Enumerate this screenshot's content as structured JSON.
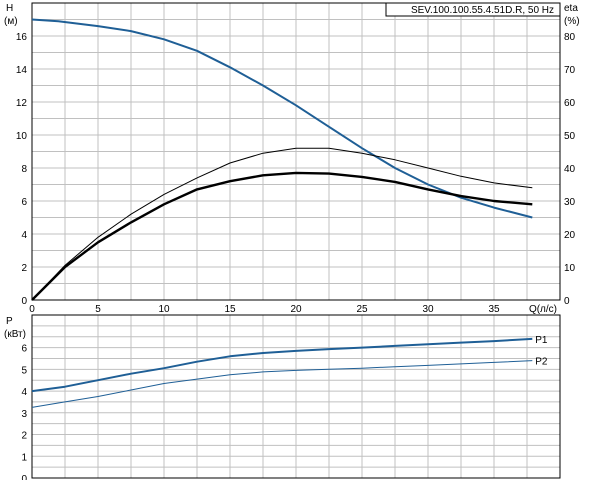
{
  "chart_data": [
    {
      "type": "line",
      "title": "SEV.100.100.55.4.51D.R, 50 Hz",
      "xlabel": "Q(л/с)",
      "y_left": {
        "name": "H",
        "unit": "(м)",
        "ylim": [
          0,
          18
        ],
        "ticks": [
          0,
          2,
          4,
          6,
          8,
          10,
          12,
          14,
          16
        ]
      },
      "y_right": {
        "name": "eta",
        "unit": "(%)",
        "ylim": [
          0,
          90
        ],
        "ticks": [
          0,
          10,
          20,
          30,
          40,
          50,
          60,
          70,
          80
        ]
      },
      "xlim": [
        0,
        40
      ],
      "xticks": [
        0,
        5,
        10,
        15,
        20,
        25,
        30,
        35
      ],
      "grid": true,
      "series": [
        {
          "axis": "left",
          "color": "#1f5f96",
          "width": 2,
          "x": [
            0,
            2,
            5,
            7.5,
            10,
            12.5,
            15,
            17.5,
            20,
            22.5,
            25,
            27.5,
            30,
            32.5,
            35,
            37.9
          ],
          "y": [
            17.0,
            16.9,
            16.6,
            16.3,
            15.8,
            15.1,
            14.1,
            13.0,
            11.8,
            10.5,
            9.2,
            8.0,
            7.0,
            6.2,
            5.6,
            5.0
          ]
        },
        {
          "axis": "right",
          "color": "#000000",
          "width": 1,
          "x": [
            0,
            2.5,
            5,
            7.5,
            10,
            12.5,
            15,
            17.5,
            20,
            22.5,
            25,
            27.5,
            30,
            32.5,
            35,
            37.9
          ],
          "y": [
            0,
            10.5,
            19,
            26,
            32,
            37,
            41.5,
            44.5,
            46,
            46,
            44.5,
            42.5,
            40,
            37.5,
            35.5,
            34
          ]
        },
        {
          "axis": "right",
          "color": "#000000",
          "width": 2.4,
          "x": [
            0,
            2.5,
            5,
            7.5,
            10,
            12.5,
            15,
            17.5,
            20,
            22.5,
            25,
            27.5,
            30,
            32.5,
            35,
            37.9
          ],
          "y": [
            0,
            10,
            17.5,
            23.5,
            29,
            33.5,
            36,
            37.8,
            38.5,
            38.3,
            37.3,
            35.8,
            33.5,
            31.5,
            30,
            29
          ]
        }
      ]
    },
    {
      "type": "line",
      "ylabel": "P",
      "yunit": "(кВт)",
      "ylim": [
        0,
        7.5
      ],
      "yticks": [
        0,
        1,
        2,
        3,
        4,
        5,
        6
      ],
      "xlim": [
        0,
        40
      ],
      "grid": true,
      "series": [
        {
          "name": "P1",
          "color": "#1f5f96",
          "width": 2,
          "x": [
            0,
            2.5,
            5,
            7.5,
            10,
            12.5,
            15,
            17.5,
            20,
            22.5,
            25,
            27.5,
            30,
            32.5,
            35,
            37.9
          ],
          "y": [
            4.0,
            4.2,
            4.5,
            4.8,
            5.05,
            5.35,
            5.6,
            5.75,
            5.85,
            5.93,
            6.0,
            6.08,
            6.15,
            6.23,
            6.3,
            6.4
          ]
        },
        {
          "name": "P2",
          "color": "#1f5f96",
          "width": 1,
          "x": [
            0,
            2.5,
            5,
            7.5,
            10,
            12.5,
            15,
            17.5,
            20,
            22.5,
            25,
            27.5,
            30,
            32.5,
            35,
            37.9
          ],
          "y": [
            3.25,
            3.5,
            3.75,
            4.05,
            4.35,
            4.55,
            4.75,
            4.88,
            4.95,
            5.0,
            5.05,
            5.12,
            5.18,
            5.25,
            5.32,
            5.4
          ]
        }
      ]
    }
  ]
}
